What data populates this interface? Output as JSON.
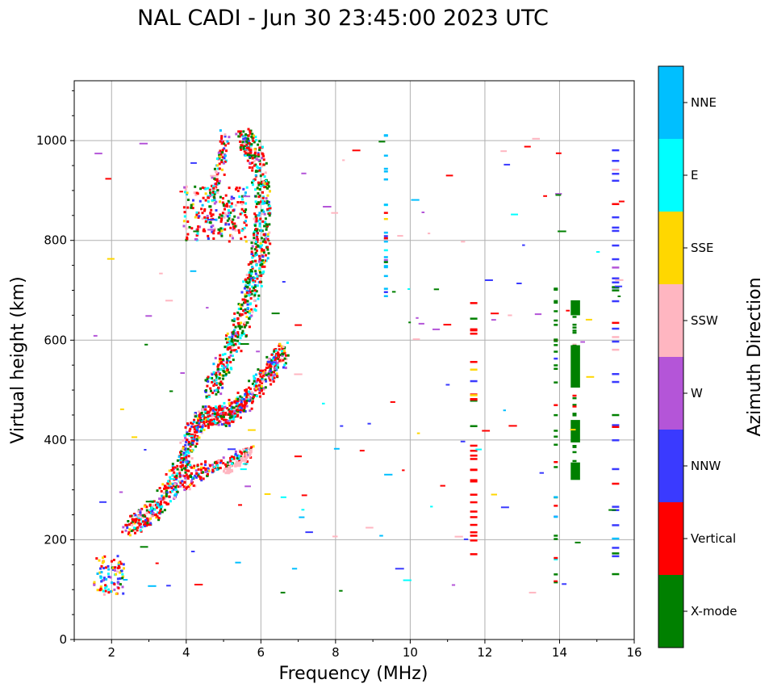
{
  "chart_data": {
    "type": "scatter",
    "title": "NAL CADI - Jun 30 23:45:00 2023 UTC",
    "xlabel": "Frequency (MHz)",
    "ylabel": "Virtual height (km)",
    "xlim": [
      1,
      16
    ],
    "ylim": [
      0,
      1120
    ],
    "xticks": [
      "2",
      "4",
      "6",
      "8",
      "10",
      "12",
      "14",
      "16"
    ],
    "yticks": [
      "0",
      "200",
      "400",
      "600",
      "800",
      "1000"
    ],
    "grid": true,
    "colorbar": {
      "label": "Azimuth Direction",
      "categories": [
        {
          "name": "X-mode",
          "color": "#008000"
        },
        {
          "name": "Vertical",
          "color": "#ff0000"
        },
        {
          "name": "NNW",
          "color": "#3a3aff"
        },
        {
          "name": "W",
          "color": "#b455d8"
        },
        {
          "name": "SSW",
          "color": "#ffb6c1"
        },
        {
          "name": "SSE",
          "color": "#ffd700"
        },
        {
          "name": "E",
          "color": "#00ffff"
        },
        {
          "name": "NNE",
          "color": "#00bfff"
        }
      ]
    },
    "trace_regions": [
      {
        "label": "low F-region cluster",
        "f": [
          1.5,
          2.4
        ],
        "h": [
          95,
          170
        ]
      },
      {
        "label": "oblique O-trace",
        "f": [
          2.4,
          4.6
        ],
        "h": [
          210,
          560
        ]
      },
      {
        "label": "upper oblique trace",
        "f": [
          4.5,
          6.8
        ],
        "h": [
          300,
          1015
        ]
      },
      {
        "label": "secondary band",
        "f": [
          3.9,
          5.6
        ],
        "h": [
          800,
          910
        ]
      }
    ],
    "vertical_streaks": [
      {
        "f": 9.35,
        "h": [
          690,
          1020
        ],
        "color": "#00bfff"
      },
      {
        "f": 11.7,
        "h": [
          110,
          690
        ],
        "color": "#ff0000"
      },
      {
        "f": 13.9,
        "h": [
          90,
          725
        ],
        "color": "#008000"
      },
      {
        "f": 14.4,
        "h": [
          315,
          680
        ],
        "color": "#008000"
      },
      {
        "f": 15.5,
        "h": [
          110,
          985
        ],
        "color": "#3a3aff"
      }
    ]
  }
}
